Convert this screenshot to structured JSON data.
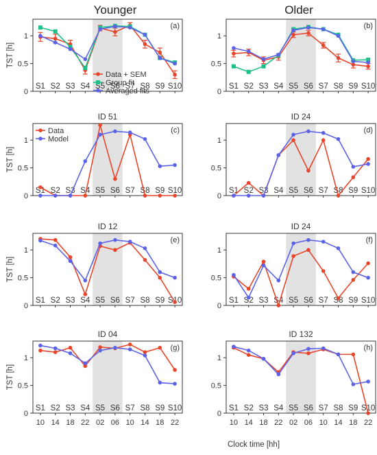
{
  "figure": {
    "col_titles": [
      "Younger",
      "Older"
    ],
    "xlabel": "Clock time [hh]",
    "ylabel": "TST [h]",
    "clock_ticks": [
      "10",
      "14",
      "18",
      "22",
      "02",
      "06",
      "10",
      "14",
      "18",
      "22"
    ]
  },
  "colors": {
    "data": "#e8452a",
    "model": "#5b62e8",
    "group": "#1dbf8a",
    "shade": "#e2e2e2",
    "axis": "#333333"
  },
  "chart_data": [
    {
      "type": "line",
      "panel_tag": "(a)",
      "title": "",
      "ylabel": "TST [h]",
      "categories": [
        "S1",
        "S2",
        "S3",
        "S4",
        "S5",
        "S6",
        "S7",
        "S8",
        "S9",
        "S10"
      ],
      "ylim": [
        0,
        1.3
      ],
      "yticks": [
        0,
        0.5,
        1
      ],
      "shaded": [
        "S5",
        "S6"
      ],
      "legend_position": "center",
      "series": [
        {
          "name": "Data + SEM",
          "color": "#e8452a",
          "marker": "circle",
          "values": [
            0.98,
            0.95,
            0.85,
            0.38,
            1.14,
            1.07,
            1.19,
            0.85,
            0.7,
            0.3
          ],
          "sem": [
            0.08,
            0.08,
            0.07,
            0.07,
            0.05,
            0.07,
            0.05,
            0.07,
            0.08,
            0.07
          ]
        },
        {
          "name": "Group fit",
          "color": "#1dbf8a",
          "marker": "square",
          "values": [
            1.15,
            1.08,
            0.8,
            0.42,
            1.15,
            1.18,
            1.17,
            1.02,
            0.6,
            0.52
          ]
        },
        {
          "name": "Averaged fits",
          "color": "#5b62e8",
          "marker": "circle",
          "values": [
            1.0,
            0.88,
            0.76,
            0.58,
            1.12,
            1.17,
            1.15,
            1.02,
            0.6,
            0.5
          ]
        }
      ]
    },
    {
      "type": "line",
      "panel_tag": "(b)",
      "title": "",
      "categories": [
        "S1",
        "S2",
        "S3",
        "S4",
        "S5",
        "S6",
        "S7",
        "S8",
        "S9",
        "S10"
      ],
      "ylim": [
        0,
        1.3
      ],
      "yticks": [
        0,
        0.5,
        1
      ],
      "shaded": [
        "S5",
        "S6"
      ],
      "series": [
        {
          "name": "Data + SEM",
          "color": "#e8452a",
          "marker": "circle",
          "values": [
            0.68,
            0.7,
            0.56,
            0.62,
            1.02,
            1.05,
            0.83,
            0.6,
            0.48,
            0.45
          ],
          "sem": [
            0.06,
            0.06,
            0.06,
            0.06,
            0.05,
            0.05,
            0.05,
            0.07,
            0.06,
            0.05
          ]
        },
        {
          "name": "Group fit",
          "color": "#1dbf8a",
          "marker": "square",
          "values": [
            0.45,
            0.35,
            0.45,
            0.65,
            1.12,
            1.16,
            1.12,
            1.02,
            0.56,
            0.57
          ]
        },
        {
          "name": "Averaged fits",
          "color": "#5b62e8",
          "marker": "circle",
          "values": [
            0.78,
            0.72,
            0.58,
            0.66,
            1.1,
            1.15,
            1.12,
            1.0,
            0.54,
            0.52
          ]
        }
      ]
    },
    {
      "type": "line",
      "panel_tag": "(c)",
      "title": "ID 51",
      "categories": [
        "S1",
        "S2",
        "S3",
        "S4",
        "S5",
        "S6",
        "S7",
        "S8",
        "S9",
        "S10"
      ],
      "ylim": [
        0,
        1.3
      ],
      "yticks": [
        0,
        0.5,
        1
      ],
      "shaded": [
        "S5",
        "S6"
      ],
      "legend_position": "top-left",
      "series": [
        {
          "name": "Data",
          "color": "#e8452a",
          "marker": "circle",
          "values": [
            0.15,
            0.0,
            0.0,
            0.0,
            1.27,
            0.3,
            1.1,
            0.0,
            0.0,
            0.0
          ]
        },
        {
          "name": "Model",
          "color": "#5b62e8",
          "marker": "circle",
          "values": [
            0.0,
            0.0,
            0.0,
            0.62,
            1.1,
            1.16,
            1.14,
            1.02,
            0.53,
            0.55
          ]
        }
      ]
    },
    {
      "type": "line",
      "panel_tag": "(d)",
      "title": "ID 24",
      "categories": [
        "S1",
        "S2",
        "S3",
        "S4",
        "S5",
        "S6",
        "S7",
        "S8",
        "S9",
        "S10"
      ],
      "ylim": [
        0,
        1.3
      ],
      "yticks": [
        0,
        0.5,
        1
      ],
      "shaded": [
        "S5",
        "S6"
      ],
      "series": [
        {
          "name": "Data",
          "color": "#e8452a",
          "marker": "circle",
          "values": [
            0.0,
            0.23,
            0.0,
            0.73,
            1.0,
            0.45,
            1.0,
            0.0,
            0.33,
            0.66
          ]
        },
        {
          "name": "Model",
          "color": "#5b62e8",
          "marker": "circle",
          "values": [
            0.0,
            0.0,
            0.0,
            0.73,
            1.1,
            1.16,
            1.13,
            1.02,
            0.52,
            0.57
          ]
        }
      ]
    },
    {
      "type": "line",
      "panel_tag": "(e)",
      "title": "ID 12",
      "categories": [
        "S1",
        "S2",
        "S3",
        "S4",
        "S5",
        "S6",
        "S7",
        "S8",
        "S9",
        "S10"
      ],
      "ylim": [
        0,
        1.3
      ],
      "yticks": [
        0,
        0.5,
        1
      ],
      "shaded": [
        "S5",
        "S6"
      ],
      "series": [
        {
          "name": "Data",
          "color": "#e8452a",
          "marker": "circle",
          "values": [
            1.2,
            1.18,
            0.87,
            0.2,
            1.07,
            1.0,
            1.13,
            0.82,
            0.5,
            0.06
          ]
        },
        {
          "name": "Model",
          "color": "#5b62e8",
          "marker": "circle",
          "values": [
            1.17,
            1.08,
            0.8,
            0.45,
            1.12,
            1.18,
            1.15,
            1.03,
            0.6,
            0.5
          ]
        }
      ]
    },
    {
      "type": "line",
      "panel_tag": "(f)",
      "title": "ID 24",
      "categories": [
        "S1",
        "S2",
        "S3",
        "S4",
        "S5",
        "S6",
        "S7",
        "S8",
        "S9",
        "S10"
      ],
      "ylim": [
        0,
        1.3
      ],
      "yticks": [
        0,
        0.5,
        1
      ],
      "shaded": [
        "S5",
        "S6"
      ],
      "series": [
        {
          "name": "Data",
          "color": "#e8452a",
          "marker": "circle",
          "values": [
            0.52,
            0.3,
            0.79,
            0.0,
            0.89,
            1.0,
            0.62,
            0.13,
            0.46,
            0.76
          ]
        },
        {
          "name": "Model",
          "color": "#5b62e8",
          "marker": "circle",
          "values": [
            0.55,
            0.14,
            0.72,
            0.45,
            1.12,
            1.18,
            1.15,
            1.03,
            0.6,
            0.5
          ]
        }
      ]
    },
    {
      "type": "line",
      "panel_tag": "(g)",
      "title": "ID 04",
      "categories": [
        "S1",
        "S2",
        "S3",
        "S4",
        "S5",
        "S6",
        "S7",
        "S8",
        "S9",
        "S10"
      ],
      "ylim": [
        0,
        1.3
      ],
      "yticks": [
        0,
        0.5,
        1
      ],
      "shaded": [
        "S5",
        "S6"
      ],
      "series": [
        {
          "name": "Data",
          "color": "#e8452a",
          "marker": "circle",
          "values": [
            1.13,
            1.1,
            1.18,
            0.85,
            1.19,
            1.17,
            1.24,
            1.1,
            1.18,
            0.78
          ]
        },
        {
          "name": "Model",
          "color": "#5b62e8",
          "marker": "circle",
          "values": [
            1.22,
            1.17,
            1.08,
            0.9,
            1.13,
            1.18,
            1.15,
            1.04,
            0.55,
            0.53
          ]
        }
      ]
    },
    {
      "type": "line",
      "panel_tag": "(h)",
      "title": "ID 132",
      "categories": [
        "S1",
        "S2",
        "S3",
        "S4",
        "S5",
        "S6",
        "S7",
        "S8",
        "S9",
        "S10"
      ],
      "ylim": [
        0,
        1.3
      ],
      "yticks": [
        0,
        0.5,
        1
      ],
      "shaded": [
        "S5",
        "S6"
      ],
      "series": [
        {
          "name": "Data",
          "color": "#e8452a",
          "marker": "circle",
          "values": [
            1.18,
            1.05,
            0.98,
            0.74,
            1.1,
            1.08,
            1.15,
            1.06,
            1.06,
            0.0
          ]
        },
        {
          "name": "Model",
          "color": "#5b62e8",
          "marker": "circle",
          "values": [
            1.2,
            1.13,
            0.98,
            0.7,
            1.08,
            1.16,
            1.17,
            1.06,
            0.52,
            0.57
          ]
        }
      ]
    }
  ]
}
